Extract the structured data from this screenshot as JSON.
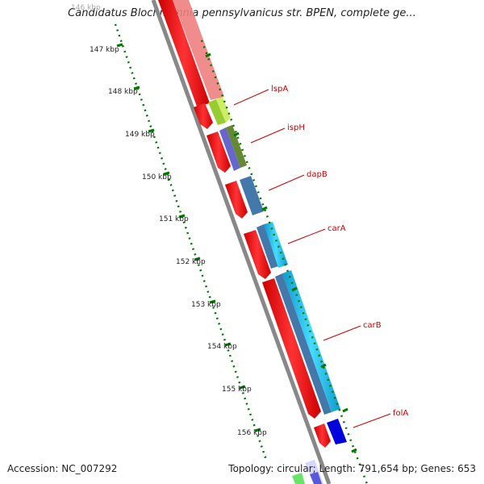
{
  "title": "Candidatus Blochmannia pennsylvanicus str. BPEN, complete ge...",
  "footer": {
    "accession": "Accession: NC_007292",
    "summary": "Topology: circular; Length: 791,654 bp; Genes: 653"
  },
  "ruler": {
    "labels": [
      "146 kbp",
      "147 kbp",
      "148 kbp",
      "149 kbp",
      "150 kbp",
      "151 kbp",
      "152 kbp",
      "153 kbp",
      "154 kbp",
      "155 kbp",
      "156 kbp"
    ]
  },
  "genes": [
    {
      "label": "lspA",
      "color": "#99cc33"
    },
    {
      "label": "ispH",
      "color": "#6666cc"
    },
    {
      "label": "dapB",
      "color": "#4477aa"
    },
    {
      "label": "carA",
      "color": "#22bbee"
    },
    {
      "label": "carB",
      "color": "#22bbee"
    },
    {
      "label": "folA",
      "color": "#0000dd"
    }
  ],
  "colors": {
    "cds": "#ff0000",
    "backbone": "#888888",
    "ruler": "#007700",
    "label": "#cc0000"
  }
}
